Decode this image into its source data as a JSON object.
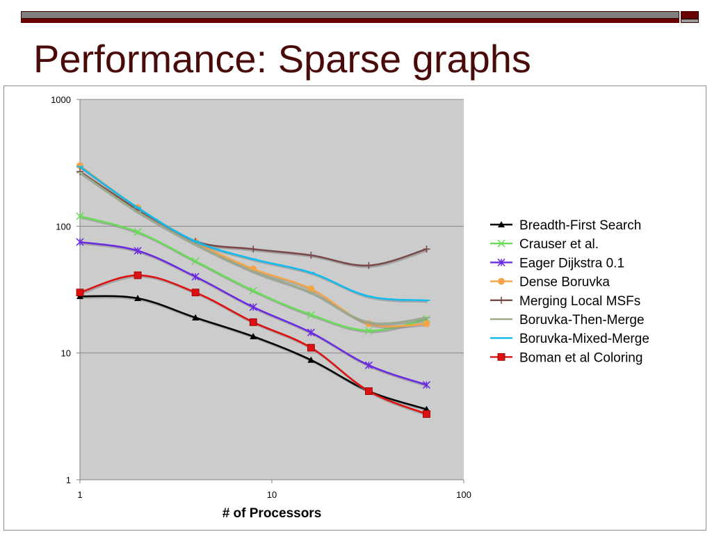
{
  "slide": {
    "title": "Performance: Sparse graphs"
  },
  "colors": {
    "title": "#4a0a0a",
    "plot_bg": "#cccccc",
    "accent_red": "#6b0000",
    "accent_grey": "#808080"
  },
  "chart_data": {
    "type": "line",
    "scale_x": "log",
    "scale_y": "log",
    "xlabel": "# of Processors",
    "ylabel": "",
    "xlim": [
      1,
      100
    ],
    "ylim": [
      1,
      1000
    ],
    "x_ticks": [
      {
        "value": 1,
        "label": "1"
      },
      {
        "value": 10,
        "label": "10"
      },
      {
        "value": 100,
        "label": "100"
      }
    ],
    "y_ticks": [
      {
        "value": 1,
        "label": "1"
      },
      {
        "value": 10,
        "label": "10"
      },
      {
        "value": 100,
        "label": "100"
      },
      {
        "value": 1000,
        "label": "1000"
      }
    ],
    "grid": "horizontal",
    "legend_position": "right",
    "x": [
      1,
      2,
      4,
      8,
      16,
      32,
      64
    ],
    "series": [
      {
        "name": "Breadth-First Search",
        "color": "#000000",
        "marker": "triangle",
        "values": [
          28,
          27,
          19,
          13.5,
          8.8,
          5,
          3.6
        ]
      },
      {
        "name": "Crauser et al.",
        "color": "#66dd55",
        "marker": "x",
        "values": [
          120,
          90,
          53,
          31,
          20,
          15,
          18.5
        ]
      },
      {
        "name": "Eager Dijkstra 0.1",
        "color": "#6a2be0",
        "marker": "asterisk",
        "values": [
          75,
          64,
          40,
          23,
          14.5,
          8,
          5.6
        ]
      },
      {
        "name": "Dense Boruvka",
        "color": "#f6a44a",
        "marker": "circle",
        "values": [
          300,
          140,
          75,
          46,
          32,
          17,
          17
        ]
      },
      {
        "name": "Merging Local MSFs",
        "color": "#7a4a4a",
        "marker": "plus",
        "values": [
          270,
          135,
          76,
          66,
          59,
          49,
          66
        ]
      },
      {
        "name": "Boruvka-Then-Merge",
        "color": "#99aa88",
        "marker": "dash",
        "values": [
          265,
          130,
          72,
          44,
          30,
          17.5,
          19
        ]
      },
      {
        "name": "Boruvka-Mixed-Merge",
        "color": "#11bbee",
        "marker": "dash",
        "values": [
          295,
          140,
          76,
          55,
          43,
          28,
          26
        ]
      },
      {
        "name": "Boman et al Coloring",
        "color": "#dd1111",
        "marker": "square",
        "values": [
          30,
          41,
          30,
          17.5,
          11,
          5,
          3.3
        ]
      }
    ]
  }
}
